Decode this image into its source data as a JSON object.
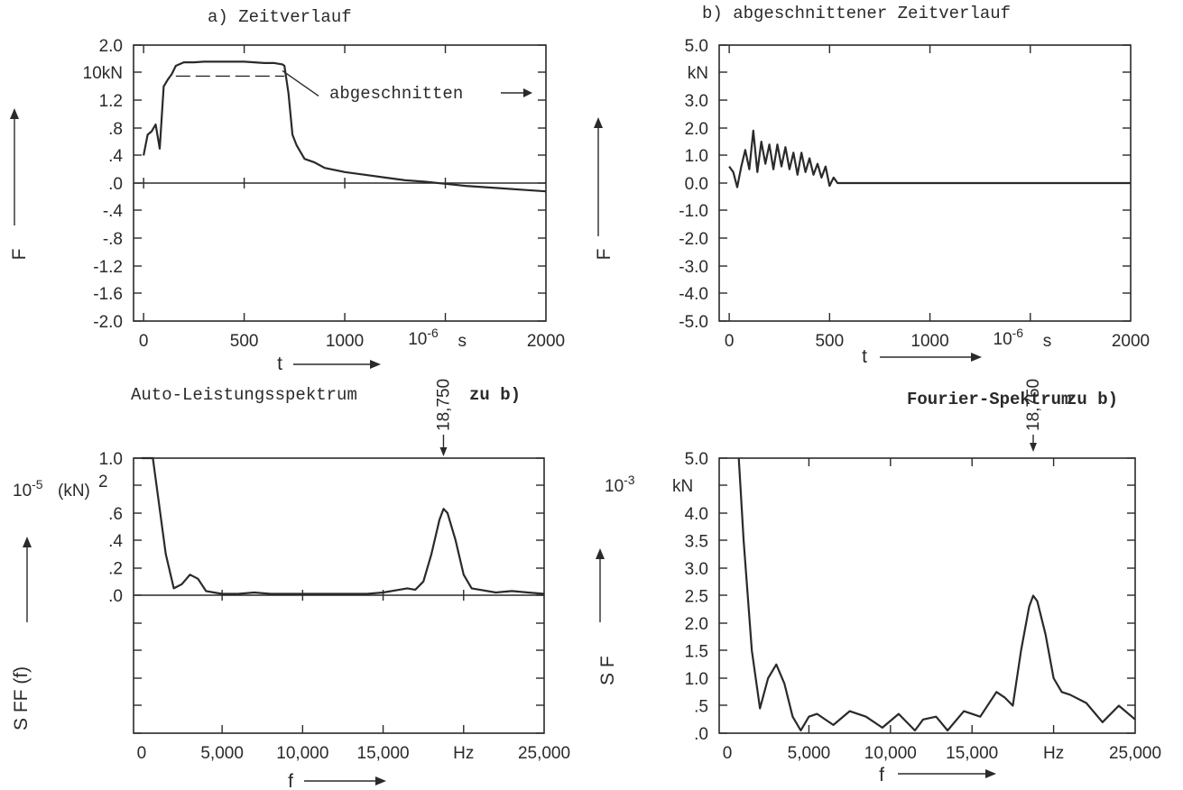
{
  "chart_data": [
    {
      "type": "line",
      "panel": "a",
      "title": "a) Zeitverlauf",
      "ylabel": "F",
      "xlabel": "t",
      "x_unit": "10^-6 s",
      "y_unit": "10kN",
      "xlim": [
        0,
        2000
      ],
      "ylim": [
        -2.0,
        2.0
      ],
      "xticks": [
        "0",
        "500",
        "1000",
        "2000"
      ],
      "yticks": [
        "2.0",
        "10kN",
        "1.2",
        ".8",
        ".4",
        ".0",
        "-.4",
        "-.8",
        "-1.2",
        "-1.6",
        "-2.0"
      ],
      "annotation": "abgeschnitten",
      "cutoff_level": 1.55,
      "series": [
        {
          "x": [
            0,
            20,
            40,
            60,
            80,
            100,
            120,
            140,
            160,
            200,
            250,
            300,
            350,
            400,
            450,
            500,
            550,
            600,
            650,
            690,
            700,
            720,
            740,
            760,
            800,
            850,
            900,
            1000,
            1100,
            1200,
            1300,
            1400,
            1500,
            1600,
            1700,
            1800,
            1900,
            2000
          ],
          "y": [
            0.4,
            0.7,
            0.75,
            0.85,
            0.5,
            1.4,
            1.5,
            1.58,
            1.7,
            1.75,
            1.75,
            1.76,
            1.76,
            1.76,
            1.76,
            1.76,
            1.75,
            1.74,
            1.74,
            1.72,
            1.7,
            1.3,
            0.7,
            0.55,
            0.35,
            0.3,
            0.22,
            0.16,
            0.12,
            0.08,
            0.04,
            0.02,
            -0.01,
            -0.04,
            -0.06,
            -0.08,
            -0.1,
            -0.12
          ]
        }
      ]
    },
    {
      "type": "line",
      "panel": "b",
      "title": "b) abgeschnittener Zeitverlauf",
      "ylabel": "F",
      "xlabel": "t",
      "x_unit": "10^-6 s",
      "y_unit": "kN",
      "xlim": [
        0,
        2000
      ],
      "ylim": [
        -5.0,
        5.0
      ],
      "xticks": [
        "0",
        "500",
        "1000",
        "2000"
      ],
      "yticks": [
        "5.0",
        "kN",
        "3.0",
        "2.0",
        "1.0",
        "0.0",
        "-1.0",
        "-2.0",
        "-3.0",
        "-4.0",
        "-5.0"
      ],
      "series": [
        {
          "x": [
            0,
            20,
            40,
            60,
            80,
            100,
            120,
            140,
            160,
            180,
            200,
            220,
            240,
            260,
            280,
            300,
            320,
            340,
            360,
            380,
            400,
            420,
            440,
            460,
            480,
            500,
            520,
            540,
            560,
            600,
            800,
            1000,
            1500,
            2000
          ],
          "y": [
            0.6,
            0.4,
            -0.15,
            0.6,
            1.2,
            0.5,
            1.9,
            0.4,
            1.5,
            0.7,
            1.4,
            0.5,
            1.4,
            0.6,
            1.3,
            0.5,
            1.1,
            0.3,
            1.1,
            0.4,
            0.9,
            0.3,
            0.7,
            0.2,
            0.6,
            -0.1,
            0.2,
            0.0,
            0.0,
            0.0,
            0.0,
            0.0,
            0.0,
            0.0
          ]
        }
      ]
    },
    {
      "type": "line",
      "panel": "c",
      "title": "Auto-Leistungsspektrum",
      "title_suffix": "zu b)",
      "ylabel": "S FF (f)",
      "xlabel": "f",
      "x_unit": "Hz",
      "y_unit": "10^-5 (kN)^2",
      "marker": "18,750",
      "marker_x": 18750,
      "xlim": [
        0,
        25000
      ],
      "ylim": [
        -1.0,
        1.0
      ],
      "xticks": [
        "0",
        "5,000",
        "10,000",
        "15,000",
        "Hz",
        "25,000"
      ],
      "yticks": [
        "1.0",
        ".6",
        ".4",
        ".2",
        ".0"
      ],
      "series": [
        {
          "x": [
            0,
            700,
            1500,
            2000,
            2500,
            3000,
            3500,
            4000,
            4500,
            5000,
            6000,
            7000,
            8000,
            9000,
            10000,
            11000,
            12000,
            13000,
            14000,
            15000,
            16000,
            16500,
            17000,
            17500,
            18000,
            18500,
            18750,
            19000,
            19500,
            20000,
            20500,
            21000,
            22000,
            23000,
            24000,
            25000
          ],
          "y": [
            1.0,
            1.0,
            0.3,
            0.05,
            0.08,
            0.15,
            0.12,
            0.03,
            0.02,
            0.01,
            0.01,
            0.02,
            0.01,
            0.01,
            0.01,
            0.01,
            0.01,
            0.01,
            0.01,
            0.02,
            0.04,
            0.05,
            0.04,
            0.1,
            0.3,
            0.55,
            0.63,
            0.6,
            0.4,
            0.15,
            0.05,
            0.04,
            0.02,
            0.03,
            0.02,
            0.01
          ]
        }
      ]
    },
    {
      "type": "line",
      "panel": "d",
      "title": "Fourier-Spektrum",
      "title_suffix": "zu b)",
      "ylabel": "S F",
      "xlabel": "f",
      "x_unit": "Hz",
      "y_unit": "10^-3 kN",
      "marker": "18,750",
      "marker_x": 18750,
      "xlim": [
        0,
        25000
      ],
      "ylim": [
        0,
        5.0
      ],
      "xticks": [
        "0",
        "5,000",
        "10,000",
        "15,000",
        "Hz",
        "25,000"
      ],
      "yticks": [
        "5.0",
        "10^-3 kN",
        "4.0",
        "3.5",
        "3.0",
        "2.5",
        "2.0",
        "1.5",
        "1.0",
        ".5",
        ".0"
      ],
      "series": [
        {
          "x": [
            700,
            1000,
            1500,
            2000,
            2500,
            3000,
            3500,
            4000,
            4500,
            5000,
            5500,
            6500,
            7500,
            8500,
            9500,
            10500,
            11500,
            12000,
            12800,
            13500,
            14500,
            15500,
            16500,
            17000,
            17500,
            18000,
            18500,
            18750,
            19000,
            19500,
            20000,
            20500,
            21000,
            22000,
            23000,
            24000,
            25000
          ],
          "y": [
            5.0,
            3.5,
            1.5,
            0.45,
            1.0,
            1.25,
            0.9,
            0.3,
            0.05,
            0.3,
            0.35,
            0.15,
            0.4,
            0.3,
            0.1,
            0.35,
            0.05,
            0.25,
            0.3,
            0.05,
            0.4,
            0.3,
            0.75,
            0.65,
            0.5,
            1.5,
            2.3,
            2.5,
            2.4,
            1.8,
            1.0,
            0.75,
            0.7,
            0.55,
            0.2,
            0.5,
            0.25
          ]
        }
      ]
    }
  ]
}
